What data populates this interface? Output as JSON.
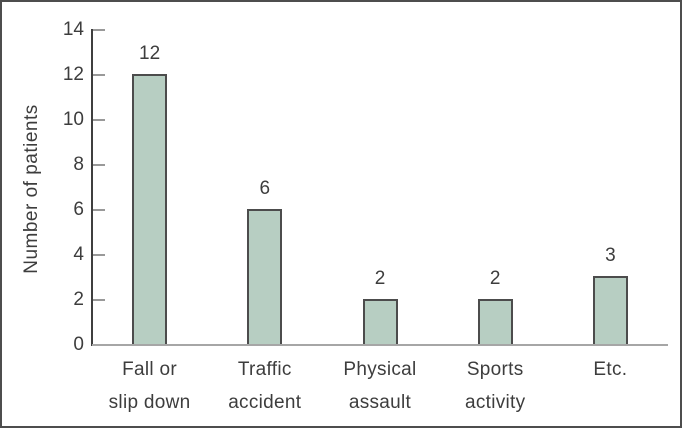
{
  "chart_data": {
    "type": "bar",
    "title": "",
    "ylabel": "Number of patients",
    "xlabel": "",
    "categories": [
      "Fall or slip down",
      "Traffic accident",
      "Physical assault",
      "Sports activity",
      "Etc."
    ],
    "category_label_lines": [
      [
        "Fall or",
        "slip down"
      ],
      [
        "Traffic",
        "accident"
      ],
      [
        "Physical",
        "assault"
      ],
      [
        "Sports",
        "activity"
      ],
      [
        "Etc."
      ]
    ],
    "values": [
      12,
      6,
      2,
      2,
      3
    ],
    "bar_value_labels": [
      "12",
      "6",
      "2",
      "2",
      "3"
    ],
    "yticks": [
      0,
      2,
      4,
      6,
      8,
      10,
      12,
      14
    ],
    "ylim": [
      0,
      14
    ],
    "grid": false,
    "legend": "none",
    "colors": {
      "bar_fill": "#b7cec2",
      "bar_border": "#4c4c4c",
      "y_axis_line": "#3f3f3f",
      "x_axis_line": "#a6a6a6",
      "tick": "#999999",
      "text": "#3d3d3d",
      "frame_border": "#4d4d4d",
      "background": "#ffffff"
    }
  }
}
